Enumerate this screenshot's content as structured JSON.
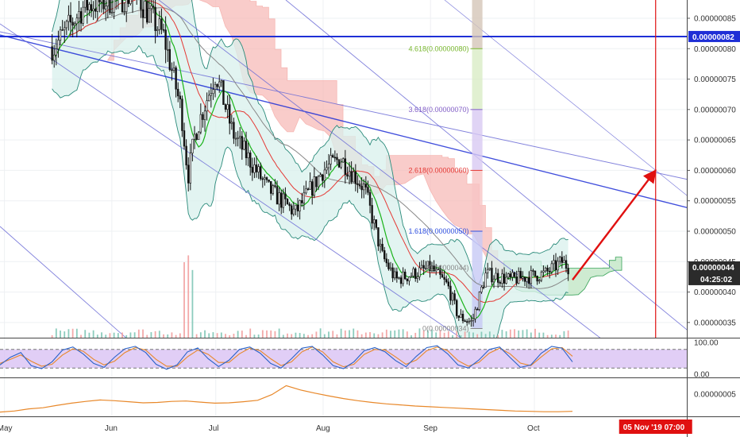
{
  "colors": {
    "candle": "#111111",
    "bb_fill": "#d8f0ec",
    "bb_line": "#2a8a7a",
    "ma_red": "#e53935",
    "ma_green": "#19b319",
    "ma_gray": "#888888",
    "cloud_red": "#f6b7b3",
    "cloud_green": "#b9e2bd",
    "channel_blue": "#6b6bd6",
    "horizontal_line": "#1f2fd6",
    "arrow": "#e01010",
    "stoch_fill": "#d9c2f4",
    "stoch_k": "#2a62c9",
    "stoch_d": "#e8882a",
    "osc_line": "#e8882a",
    "fib_green": "#7ab830",
    "fib_purple": "#8460c8",
    "fib_red": "#e53935",
    "fib_blue": "#3050e0",
    "fib_gray": "#888888",
    "price_tag_blue": "#1f2fd6",
    "price_tag_dark": "#2b2b2b",
    "date_tag_red": "#e01010"
  },
  "chart_data": [
    {
      "type": "candlestick",
      "panel": "price",
      "ylim": [
        3.25e-07,
        8.8e-07
      ],
      "y_ticks": [
        "0.00000085",
        "0.00000080",
        "0.00000075",
        "0.00000070",
        "0.00000065",
        "0.00000060",
        "0.00000055",
        "0.00000050",
        "0.00000045",
        "0.00000040",
        "0.00000035"
      ],
      "y_tick_values": [
        8.5e-07,
        8e-07,
        7.5e-07,
        7e-07,
        6.5e-07,
        6e-07,
        5.5e-07,
        5e-07,
        4.5e-07,
        4e-07,
        3.5e-07
      ],
      "x_ticks": [
        "May",
        "Jun",
        "Jul",
        "Aug",
        "Sep",
        "Oct"
      ],
      "price_path": [
        [
          "2019-05-01",
          8.8e-07
        ],
        [
          "2019-05-12",
          8.4e-07
        ],
        [
          "2019-05-15",
          8e-07
        ],
        [
          "2019-05-24",
          8.7e-07
        ],
        [
          "2019-06-08",
          8.9e-07
        ],
        [
          "2019-06-16",
          8.2e-07
        ],
        [
          "2019-06-21",
          7e-07
        ],
        [
          "2019-06-23",
          5.9e-07
        ],
        [
          "2019-06-25",
          6.6e-07
        ],
        [
          "2019-07-01",
          7.6e-07
        ],
        [
          "2019-07-06",
          6.6e-07
        ],
        [
          "2019-07-16",
          5.7e-07
        ],
        [
          "2019-07-24",
          5.3e-07
        ],
        [
          "2019-08-01",
          6e-07
        ],
        [
          "2019-08-06",
          6.2e-07
        ],
        [
          "2019-08-13",
          5.7e-07
        ],
        [
          "2019-08-18",
          4.6e-07
        ],
        [
          "2019-08-22",
          4.2e-07
        ],
        [
          "2019-09-01",
          4.4e-07
        ],
        [
          "2019-09-06",
          4.1e-07
        ],
        [
          "2019-09-09",
          3.6e-07
        ],
        [
          "2019-09-13",
          3.5e-07
        ],
        [
          "2019-09-17",
          4.3e-07
        ],
        [
          "2019-09-24",
          4.2e-07
        ],
        [
          "2019-10-04",
          4.3e-07
        ],
        [
          "2019-10-09",
          4.5e-07
        ],
        [
          "2019-10-11",
          4.4e-07
        ]
      ],
      "horizontal_line": {
        "value": 8.2e-07,
        "label": "0.00000082"
      },
      "last_price": {
        "value": 4.4e-07,
        "label": "0.00000044",
        "countdown": "04:25:02"
      },
      "fibonacci": [
        {
          "label": "0(0.00000034)",
          "value": 3.4e-07,
          "color": "#888888"
        },
        {
          "label": "1.618(0.00000050)",
          "value": 5e-07,
          "color": "#3050e0"
        },
        {
          "label": "2.618(0.00000060)",
          "value": 6e-07,
          "color": "#e53935"
        },
        {
          "label": "3.618(0.00000070)",
          "value": 7e-07,
          "color": "#8460c8"
        },
        {
          "label": "4.618(0.00000080)",
          "value": 8e-07,
          "color": "#7ab830"
        }
      ],
      "fib_partial_label": "(0.00000044)",
      "target_arrow": {
        "from": [
          "2019-10-12",
          4.2e-07
        ],
        "to": [
          "2019-11-05",
          6e-07
        ]
      },
      "vertical_marker": {
        "date": "2019-11-05",
        "label": "05 Nov '19   07:00"
      }
    },
    {
      "type": "line",
      "panel": "stochastic",
      "ylim": [
        0,
        100
      ],
      "y_ticks": [
        "100.00",
        "0.00"
      ],
      "y_tick_values": [
        100,
        0
      ],
      "band": [
        20,
        80
      ],
      "series": [
        {
          "values": [
            30,
            55,
            70,
            28,
            18,
            40,
            78,
            88,
            65,
            35,
            22,
            55,
            82,
            90,
            70,
            32,
            16,
            30,
            72,
            85,
            50,
            25,
            45,
            80,
            88,
            68,
            35,
            20,
            50,
            84,
            90,
            62,
            28,
            18,
            40,
            76,
            86,
            72,
            44,
            24,
            58,
            86,
            92,
            66,
            30,
            20,
            46,
            80,
            88,
            54,
            22,
            30,
            68,
            90,
            84,
            40
          ]
        },
        {
          "values": [
            35,
            48,
            62,
            42,
            26,
            32,
            62,
            82,
            74,
            48,
            30,
            42,
            70,
            86,
            78,
            48,
            26,
            26,
            56,
            78,
            64,
            38,
            38,
            66,
            84,
            76,
            50,
            28,
            40,
            72,
            88,
            72,
            40,
            24,
            32,
            64,
            80,
            78,
            56,
            32,
            46,
            76,
            88,
            76,
            44,
            26,
            38,
            68,
            84,
            66,
            36,
            28,
            56,
            82,
            86,
            58
          ]
        }
      ]
    },
    {
      "type": "line",
      "panel": "oscillator",
      "y_ticks": [
        "0.00000005"
      ],
      "y_tick_values": [
        5
      ],
      "ylim": [
        -1.2,
        9.5
      ],
      "series": [
        {
          "values": [
            0,
            0.3,
            0.9,
            1.2,
            1.9,
            2.5,
            3.0,
            3.4,
            3.2,
            2.9,
            2.6,
            2.7,
            3.0,
            3.1,
            2.8,
            2.5,
            2.6,
            2.9,
            3.3,
            4.9,
            7.4,
            6.2,
            5.3,
            4.5,
            3.8,
            3.2,
            2.7,
            2.3,
            2.0,
            1.7,
            1.5,
            1.3,
            1.1,
            0.9,
            0.7,
            0.5,
            0.3,
            0.2,
            0.1,
            0.1,
            0.2
          ]
        }
      ]
    }
  ]
}
